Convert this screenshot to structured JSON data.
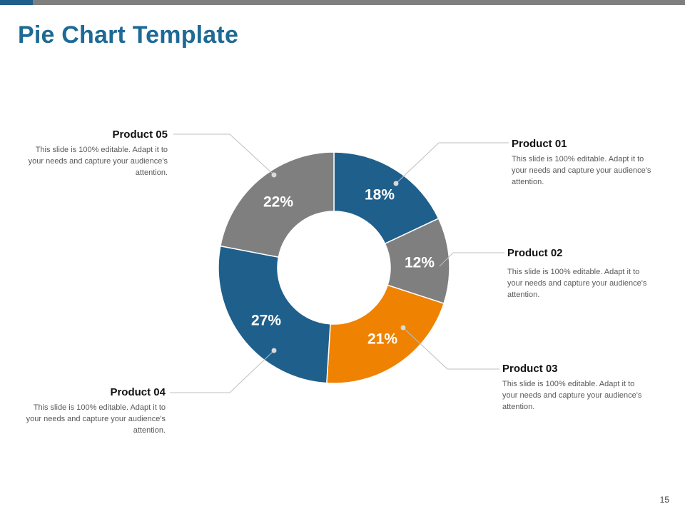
{
  "slide": {
    "title": "Pie Chart Template",
    "page_number": "15"
  },
  "colors": {
    "blue": "#1f5f8b",
    "gray": "#7f7f7f",
    "orange": "#ef8200",
    "title": "#1e6a96",
    "leader": "#bfbfbf"
  },
  "chart_data": {
    "type": "pie",
    "donut": true,
    "title": "",
    "categories": [
      "Product 01",
      "Product 02",
      "Product 03",
      "Product 04",
      "Product 05"
    ],
    "values": [
      18,
      12,
      21,
      27,
      22
    ],
    "labels": [
      "18%",
      "12%",
      "21%",
      "27%",
      "22%"
    ],
    "slice_colors": [
      "#1f5f8b",
      "#7f7f7f",
      "#ef8200",
      "#1f5f8b",
      "#7f7f7f"
    ],
    "start": "top, clockwise",
    "unit": "%"
  },
  "callouts": [
    {
      "name": "Product 01",
      "desc": "This slide is 100% editable. Adapt it to your needs and capture your audience's attention."
    },
    {
      "name": "Product 02",
      "desc": "This slide is 100% editable. Adapt it to your needs and capture your audience's attention."
    },
    {
      "name": "Product 03",
      "desc": "This slide is 100% editable. Adapt it to your needs and capture your audience's attention."
    },
    {
      "name": "Product 04",
      "desc": "This slide is 100% editable. Adapt it to your needs and capture your audience's attention."
    },
    {
      "name": "Product 05",
      "desc": "This slide is 100% editable. Adapt it to your needs and capture your audience's attention."
    }
  ]
}
